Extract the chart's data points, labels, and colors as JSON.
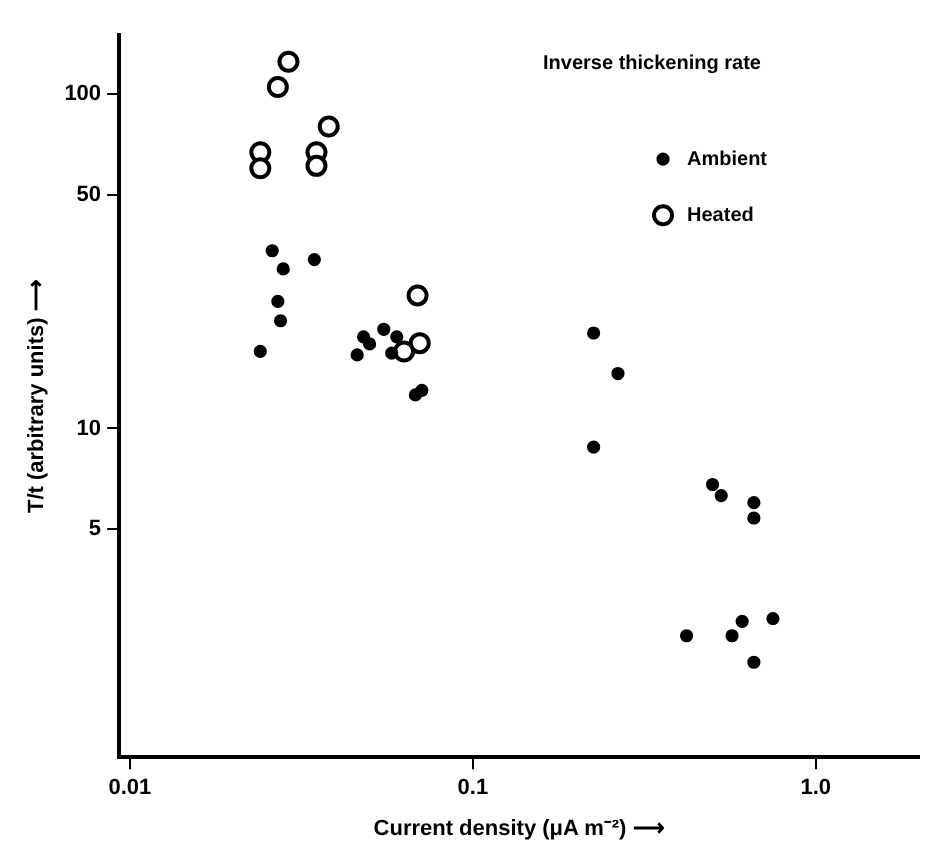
{
  "chart_data": {
    "type": "scatter",
    "annotations": [
      "Inverse thickening rate"
    ],
    "xlabel": "Current density (μA m⁻²) ⟶",
    "ylabel": "T/t (arbitrary units) ⟶",
    "log": "xy",
    "xlim": [
      0.0093,
      2
    ],
    "ylim": [
      1.04,
      150
    ],
    "xticks": [
      0.01,
      0.1,
      {
        "value": 1,
        "label": "1.0"
      }
    ],
    "yticks": [
      5,
      10,
      50,
      100
    ],
    "grid": false,
    "legend": "top right",
    "marker": "circle",
    "series": [
      {
        "name": "Ambient",
        "color": "#000000",
        "x": [
          0.026,
          0.028,
          0.027,
          0.0275,
          0.024,
          0.0345,
          0.046,
          0.048,
          0.05,
          0.055,
          0.06,
          0.058,
          0.068,
          0.071,
          0.225,
          0.265,
          0.225,
          0.5,
          0.53,
          0.66,
          0.66,
          0.42,
          0.57,
          0.61,
          0.75,
          0.66
        ],
        "values": [
          34,
          30,
          24,
          21,
          17,
          32,
          16.6,
          18.8,
          17.9,
          19.8,
          18.8,
          16.8,
          12.6,
          13,
          19.3,
          14.6,
          8.8,
          6.8,
          6.3,
          6,
          5.4,
          2.4,
          2.4,
          2.65,
          2.7,
          2
        ]
      },
      {
        "name": "Heated",
        "color": "#000000",
        "x": [
          0.029,
          0.027,
          0.024,
          0.024,
          0.035,
          0.035,
          0.038,
          0.069,
          0.07,
          0.063
        ],
        "values": [
          125,
          105,
          67,
          60,
          67,
          61,
          80,
          25,
          18,
          17
        ]
      }
    ]
  }
}
